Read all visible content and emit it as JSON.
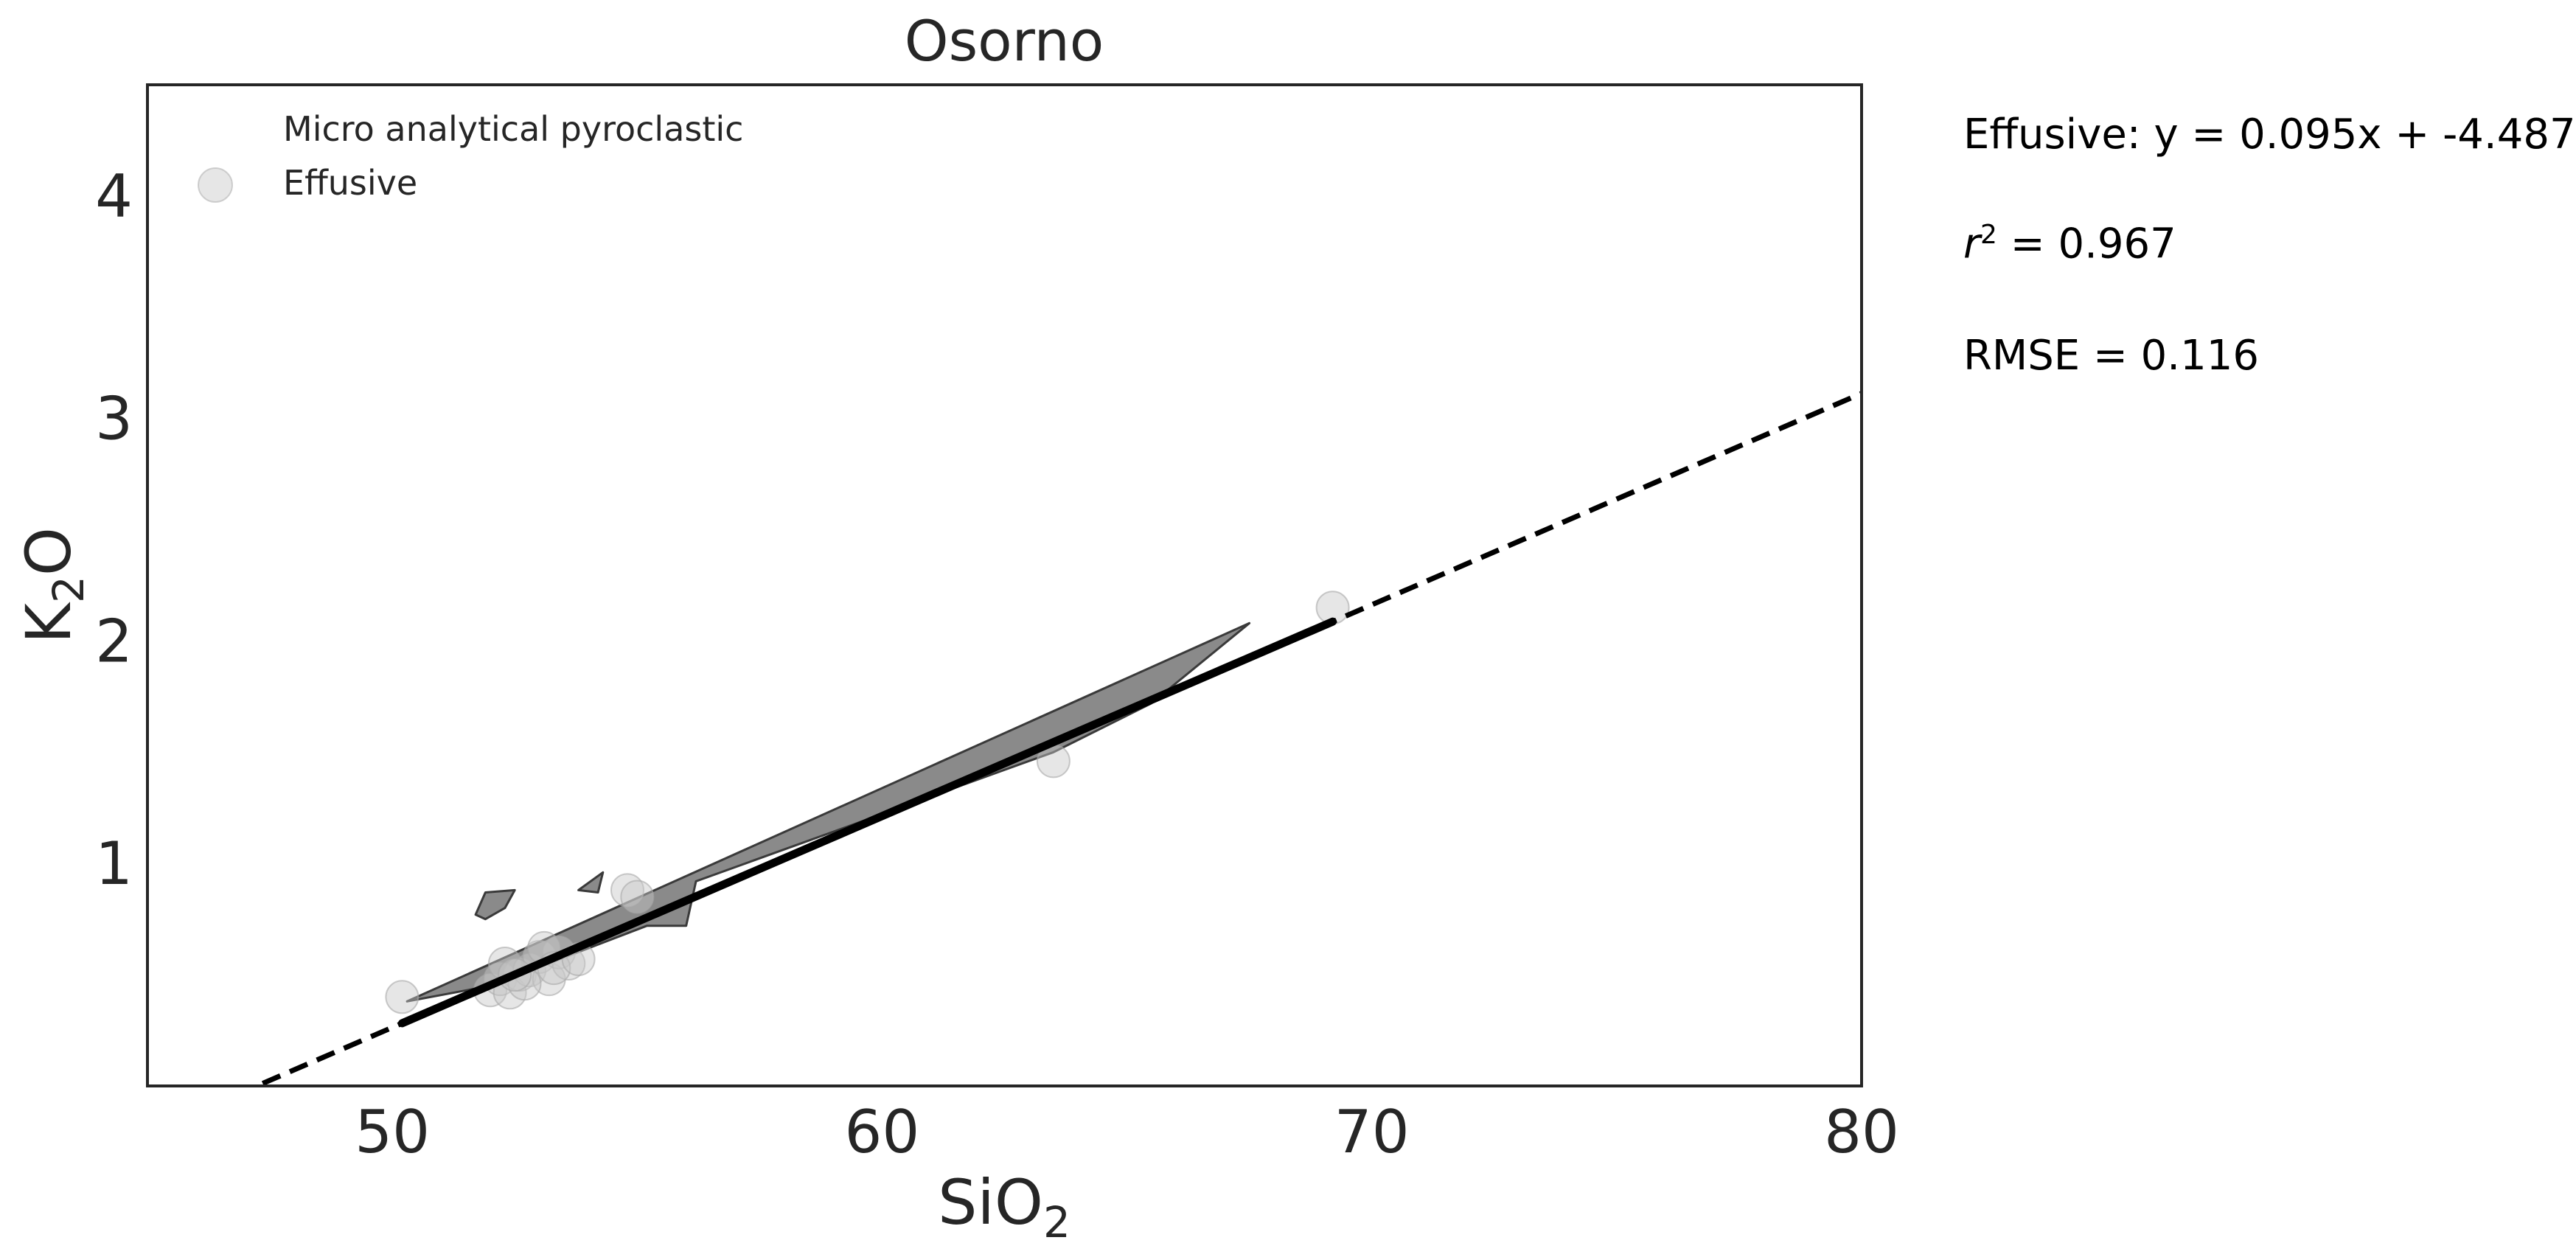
{
  "chart_data": {
    "type": "scatter",
    "title": "Osorno",
    "xlabel": {
      "main": "SiO",
      "sub": "2"
    },
    "ylabel": {
      "main": "K",
      "sub": "2",
      "tail": "O"
    },
    "xlim": [
      45,
      80
    ],
    "ylim": [
      0,
      4.5
    ],
    "xticks": [
      50,
      60,
      70,
      80
    ],
    "yticks": [
      1,
      2,
      3,
      4
    ],
    "grid": false,
    "legend": {
      "placement": "top-left",
      "entries": [
        "Micro analytical pyroclastic",
        "Effusive"
      ]
    },
    "series": [
      {
        "name": "Effusive",
        "kind": "points",
        "color": "#c8c8c8",
        "opacity": 0.45,
        "x": [
          50.2,
          52.0,
          52.2,
          52.4,
          52.6,
          52.3,
          52.8,
          53.0,
          53.2,
          53.4,
          53.6,
          53.1,
          52.7,
          53.3,
          53.8,
          52.5,
          54.8,
          55.0,
          63.5,
          69.2
        ],
        "y": [
          0.4,
          0.43,
          0.48,
          0.42,
          0.5,
          0.55,
          0.52,
          0.58,
          0.48,
          0.6,
          0.55,
          0.62,
          0.46,
          0.53,
          0.57,
          0.5,
          0.88,
          0.85,
          1.46,
          2.15
        ]
      },
      {
        "name": "Micro analytical pyroclastic",
        "kind": "density-contours",
        "color": "#595959",
        "opacity": 0.7,
        "polygons": [
          [
            [
              51.7,
              0.77
            ],
            [
              51.9,
              0.87
            ],
            [
              52.5,
              0.88
            ],
            [
              52.3,
              0.8
            ],
            [
              51.9,
              0.75
            ]
          ],
          [
            [
              53.8,
              0.88
            ],
            [
              54.3,
              0.96
            ],
            [
              54.2,
              0.87
            ]
          ],
          [
            [
              50.3,
              0.38
            ],
            [
              67.5,
              2.08
            ],
            [
              65.5,
              1.72
            ],
            [
              63.5,
              1.5
            ],
            [
              56.2,
              0.92
            ],
            [
              56.0,
              0.72
            ],
            [
              55.2,
              0.72
            ],
            [
              52.0,
              0.45
            ]
          ]
        ]
      },
      {
        "name": "Effusive fit (data range)",
        "kind": "line",
        "style": "solid",
        "color": "#000000",
        "x": [
          50.2,
          69.2
        ],
        "y": [
          0.282,
          2.087
        ]
      },
      {
        "name": "Effusive fit (extrapolated)",
        "kind": "line",
        "style": "dashed",
        "color": "#000000",
        "x": [
          46.8,
          80
        ],
        "y": [
          -0.041,
          3.113
        ]
      }
    ]
  },
  "annotations": {
    "equation": "Effusive: y = 0.095x + -4.487",
    "r2_symbol": "r",
    "r2_exponent": "2",
    "r2_value": " = 0.967",
    "rmse": "RMSE = 0.116"
  }
}
